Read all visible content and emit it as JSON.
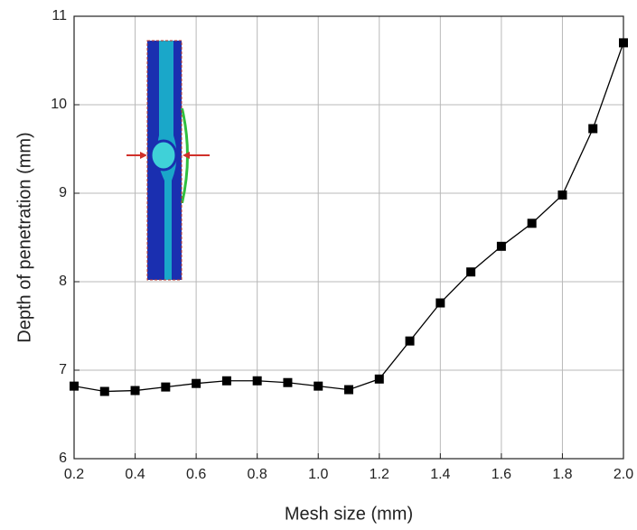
{
  "chart_data": {
    "type": "line",
    "xlabel": "Mesh size (mm)",
    "ylabel": "Depth of penetration (mm)",
    "x": [
      0.2,
      0.3,
      0.4,
      0.5,
      0.6,
      0.7,
      0.8,
      0.9,
      1.0,
      1.1,
      1.2,
      1.3,
      1.4,
      1.5,
      1.6,
      1.7,
      1.8,
      1.9,
      2.0
    ],
    "values": [
      6.82,
      6.76,
      6.77,
      6.81,
      6.85,
      6.88,
      6.88,
      6.86,
      6.82,
      6.78,
      6.9,
      7.33,
      7.76,
      8.11,
      8.4,
      8.66,
      8.98,
      9.73,
      10.7
    ],
    "color": "#000000",
    "xlim": [
      0.2,
      2.0
    ],
    "xticks": [
      0.2,
      0.4,
      0.6,
      0.8,
      {
        "value": 1.0,
        "label": "1.0"
      },
      1.2,
      1.4,
      1.6,
      1.8,
      {
        "value": 2.0,
        "label": "2.0"
      }
    ],
    "ylim": [
      6,
      11
    ],
    "yticks": [
      6,
      7,
      8,
      9,
      10,
      11
    ],
    "grid": true
  }
}
